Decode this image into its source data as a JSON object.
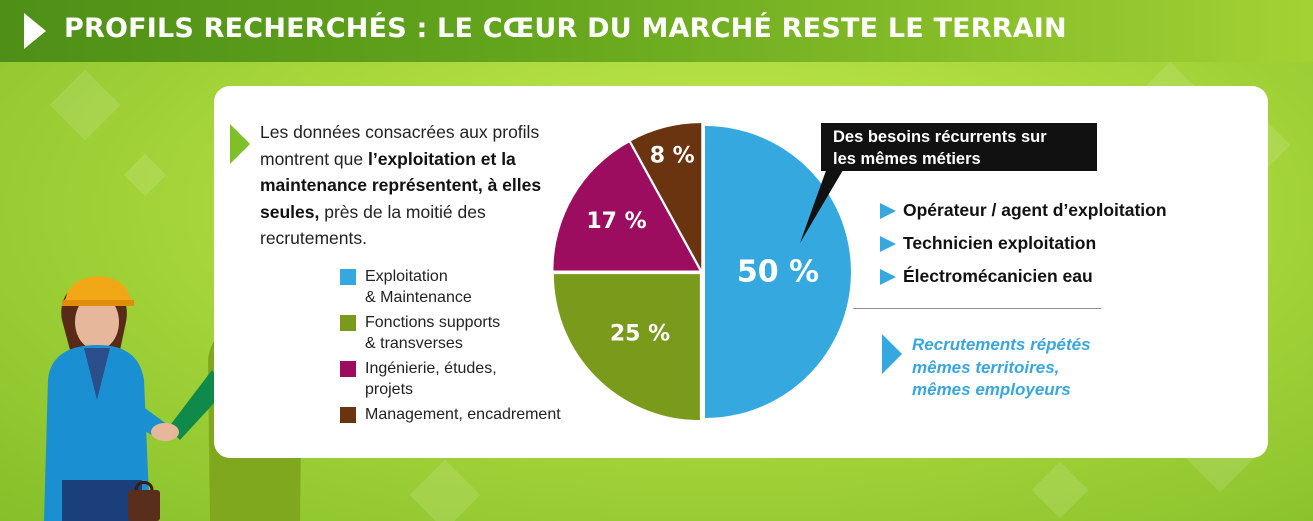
{
  "title": "PROFILS RECHERCHÉS : LE CŒUR DU MARCHÉ RESTE LE TERRAIN",
  "intro": {
    "part1": "Les données consacrées aux profils montrent que ",
    "bold": "l’exploitation et la maintenance représentent, à elles seules,",
    "part2": " près de la moitié des recrutements."
  },
  "chart_data": {
    "type": "pie",
    "unit": "%",
    "slices": [
      {
        "label": "Exploitation & Maintenance",
        "value": 50,
        "display": "50 %",
        "color": "#35a8e0"
      },
      {
        "label": "Fonctions supports & transverses",
        "value": 25,
        "display": "25 %",
        "color": "#7a9a1c"
      },
      {
        "label": "Ingénierie, études, projets",
        "value": 17,
        "display": "17 %",
        "color": "#9c0d5f"
      },
      {
        "label": "Management, encadrement",
        "value": 8,
        "display": "8 %",
        "color": "#6b3410"
      }
    ],
    "legend_lines": [
      [
        "Exploitation",
        "& Maintenance"
      ],
      [
        "Fonctions supports",
        "& transverses"
      ],
      [
        "Ingénierie, études,",
        "projets"
      ],
      [
        "Management, encadrement"
      ]
    ]
  },
  "callout": {
    "line1": "Des besoins récurrents sur",
    "line2": "les mêmes métiers"
  },
  "jobs": [
    "Opérateur / agent d’exploitation",
    "Technicien exploitation",
    "Électromécanicien eau"
  ],
  "note": {
    "line1": "Recrutements répétés",
    "line2": "mêmes territoires,",
    "line3": "mêmes employeurs"
  },
  "colors": {
    "header_green": "#5a9c1a",
    "accent_green": "#7fbf2a",
    "accent_blue": "#35a8e0"
  },
  "icons": [
    "header-chevron-icon",
    "intro-chevron-icon",
    "job-arrow-icon",
    "note-chevron-icon"
  ]
}
